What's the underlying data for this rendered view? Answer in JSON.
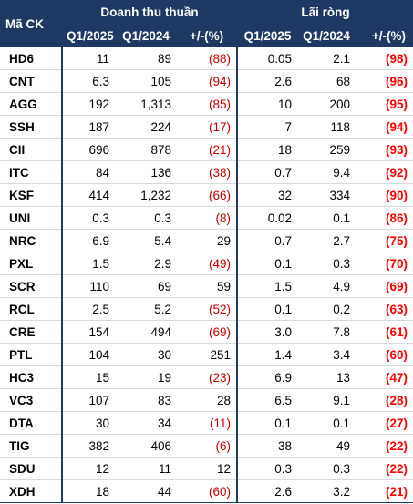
{
  "header": {
    "code_label": "Mã CK",
    "revenue_group": "Doanh thu thuần",
    "profit_group": "Lãi  ròng",
    "sub_labels": [
      "Q1/2025",
      "Q1/2024",
      "+/-(%)",
      "Q1/2025",
      "Q1/2024",
      "+/-(%)"
    ]
  },
  "rows": [
    {
      "code": "HD6",
      "rev25": "11",
      "rev24": "89",
      "rev_chg": "(88)",
      "np25": "0.05",
      "np24": "2.1",
      "np_chg": "(98)"
    },
    {
      "code": "CNT",
      "rev25": "6.3",
      "rev24": "105",
      "rev_chg": "(94)",
      "np25": "2.6",
      "np24": "68",
      "np_chg": "(96)"
    },
    {
      "code": "AGG",
      "rev25": "192",
      "rev24": "1,313",
      "rev_chg": "(85)",
      "np25": "10",
      "np24": "200",
      "np_chg": "(95)"
    },
    {
      "code": "SSH",
      "rev25": "187",
      "rev24": "224",
      "rev_chg": "(17)",
      "np25": "7",
      "np24": "118",
      "np_chg": "(94)"
    },
    {
      "code": "CII",
      "rev25": "696",
      "rev24": "878",
      "rev_chg": "(21)",
      "np25": "18",
      "np24": "259",
      "np_chg": "(93)"
    },
    {
      "code": "ITC",
      "rev25": "84",
      "rev24": "136",
      "rev_chg": "(38)",
      "np25": "0.7",
      "np24": "9.4",
      "np_chg": "(92)"
    },
    {
      "code": "KSF",
      "rev25": "414",
      "rev24": "1,232",
      "rev_chg": "(66)",
      "np25": "32",
      "np24": "334",
      "np_chg": "(90)"
    },
    {
      "code": "UNI",
      "rev25": "0.3",
      "rev24": "0.3",
      "rev_chg": "(8)",
      "np25": "0.02",
      "np24": "0.1",
      "np_chg": "(86)"
    },
    {
      "code": "NRC",
      "rev25": "6.9",
      "rev24": "5.4",
      "rev_chg": "29",
      "np25": "0.7",
      "np24": "2.7",
      "np_chg": "(75)"
    },
    {
      "code": "PXL",
      "rev25": "1.5",
      "rev24": "2.9",
      "rev_chg": "(49)",
      "np25": "0.1",
      "np24": "0.3",
      "np_chg": "(70)"
    },
    {
      "code": "SCR",
      "rev25": "110",
      "rev24": "69",
      "rev_chg": "59",
      "np25": "1.5",
      "np24": "4.9",
      "np_chg": "(69)"
    },
    {
      "code": "RCL",
      "rev25": "2.5",
      "rev24": "5.2",
      "rev_chg": "(52)",
      "np25": "0.1",
      "np24": "0.2",
      "np_chg": "(63)"
    },
    {
      "code": "CRE",
      "rev25": "154",
      "rev24": "494",
      "rev_chg": "(69)",
      "np25": "3.0",
      "np24": "7.8",
      "np_chg": "(61)"
    },
    {
      "code": "PTL",
      "rev25": "104",
      "rev24": "30",
      "rev_chg": "251",
      "np25": "1.4",
      "np24": "3.4",
      "np_chg": "(60)"
    },
    {
      "code": "HC3",
      "rev25": "15",
      "rev24": "19",
      "rev_chg": "(23)",
      "np25": "6.9",
      "np24": "13",
      "np_chg": "(47)"
    },
    {
      "code": "VC3",
      "rev25": "107",
      "rev24": "83",
      "rev_chg": "28",
      "np25": "6.5",
      "np24": "9.1",
      "np_chg": "(28)"
    },
    {
      "code": "DTA",
      "rev25": "30",
      "rev24": "34",
      "rev_chg": "(11)",
      "np25": "0.1",
      "np24": "0.1",
      "np_chg": "(27)"
    },
    {
      "code": "TIG",
      "rev25": "382",
      "rev24": "406",
      "rev_chg": "(6)",
      "np25": "38",
      "np24": "49",
      "np_chg": "(22)"
    },
    {
      "code": "SDU",
      "rev25": "12",
      "rev24": "11",
      "rev_chg": "12",
      "np25": "0.3",
      "np24": "0.3",
      "np_chg": "(22)"
    },
    {
      "code": "XDH",
      "rev25": "18",
      "rev24": "44",
      "rev_chg": "(60)",
      "np25": "2.6",
      "np24": "3.2",
      "np_chg": "(21)"
    }
  ],
  "colors": {
    "header_bg": "#1f3864",
    "header_text": "#ffffff",
    "negative_red": "#c00000",
    "net_negative_red": "#ff0000"
  }
}
